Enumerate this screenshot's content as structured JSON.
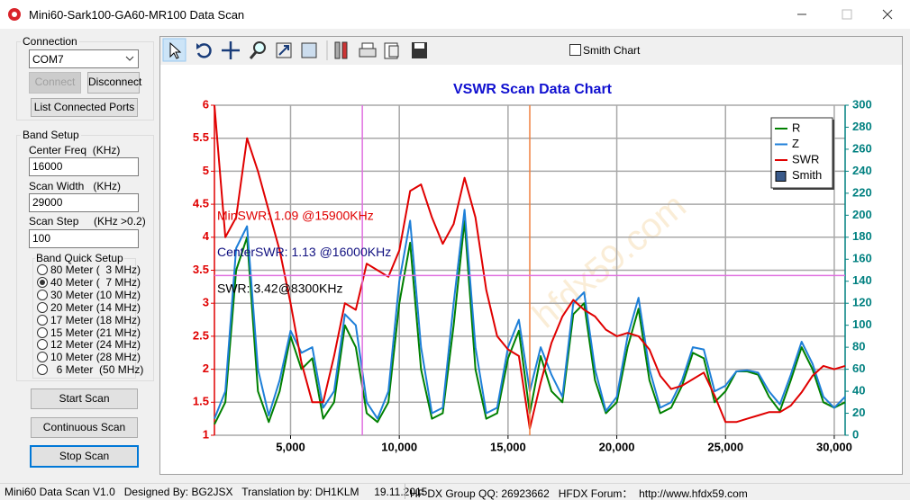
{
  "window_title": "Mini60-Sark100-GA60-MR100 Data Scan",
  "connection": {
    "title": "Connection",
    "port": "COM7",
    "connect": "Connect",
    "disconnect": "Disconnect",
    "list_ports": "List Connected Ports"
  },
  "band_setup": {
    "title": "Band Setup",
    "center_label": "Center Freq  (KHz)",
    "center_value": "16000",
    "width_label": "Scan Width   (KHz)",
    "width_value": "29000",
    "step_label": "Scan Step     (KHz >0.2)",
    "step_value": "100",
    "quick_title": "Band Quick Setup",
    "bands": [
      "80 Meter (  3 MHz)",
      "40 Meter (  7 MHz)",
      "30 Meter (10 MHz)",
      "20 Meter (14 MHz)",
      "17 Meter (18 MHz)",
      "15 Meter (21 MHz)",
      "12 Meter (24 MHz)",
      "10 Meter (28 MHz)",
      "  6 Meter  (50 MHz)"
    ],
    "selected_band": 1
  },
  "buttons": {
    "start": "Start Scan",
    "continuous": "Continuous Scan",
    "stop": "Stop Scan"
  },
  "toolbar": {
    "smith_chart": "Smith Chart"
  },
  "status_bar": {
    "left": "Mini60 Data Scan V1.0   Designed By: BG2JSX   Translation by: DH1KLM     19.11.2015",
    "right": "HF DX Group QQ: 26923662   HFDX Forum：  http://www.hfdx59.com"
  },
  "chart_data": {
    "type": "line",
    "title": "VSWR Scan Data Chart",
    "watermark": "hfdx59.com",
    "x": [
      1500,
      2000,
      2500,
      3000,
      3500,
      4000,
      4500,
      5000,
      5500,
      6000,
      6500,
      7000,
      7500,
      8000,
      8500,
      9000,
      9500,
      10000,
      10500,
      11000,
      11500,
      12000,
      12500,
      13000,
      13500,
      14000,
      14500,
      15000,
      15500,
      16000,
      16500,
      17000,
      17500,
      18000,
      18500,
      19000,
      19500,
      20000,
      20500,
      21000,
      21500,
      22000,
      22500,
      23000,
      23500,
      24000,
      24500,
      25000,
      25500,
      26000,
      26500,
      27000,
      27500,
      28000,
      28500,
      29000,
      29500,
      30000,
      30500
    ],
    "xlim": [
      1500,
      30500
    ],
    "xticks": [
      {
        "value": 5000,
        "label": "5,000"
      },
      {
        "value": 10000,
        "label": "10,000"
      },
      {
        "value": 15000,
        "label": "15,000"
      },
      {
        "value": 20000,
        "label": "20,000"
      },
      {
        "value": 25000,
        "label": "25,000"
      },
      {
        "value": 30000,
        "label": "30,000"
      }
    ],
    "ylim": [
      1,
      6
    ],
    "yticks": [
      1,
      1.5,
      2,
      2.5,
      3,
      3.5,
      4,
      4.5,
      5,
      5.5,
      6
    ],
    "y2lim": [
      0,
      300
    ],
    "y2ticks": [
      0,
      20,
      40,
      60,
      80,
      100,
      120,
      140,
      160,
      180,
      200,
      220,
      240,
      260,
      280,
      300
    ],
    "grid": true,
    "legend": "top-right",
    "smith_legend": "Smith",
    "series": [
      {
        "name": "R",
        "color": "#008000",
        "axis": "y2",
        "values": [
          10,
          30,
          150,
          180,
          40,
          12,
          40,
          90,
          60,
          70,
          15,
          30,
          100,
          80,
          20,
          12,
          30,
          120,
          175,
          60,
          15,
          20,
          100,
          195,
          60,
          15,
          20,
          70,
          95,
          20,
          72,
          40,
          30,
          110,
          120,
          50,
          20,
          30,
          80,
          115,
          50,
          20,
          25,
          45,
          75,
          70,
          30,
          40,
          58,
          58,
          55,
          35,
          22,
          50,
          80,
          60,
          30,
          25,
          30
        ]
      },
      {
        "name": "Z",
        "color": "#1e7fd8",
        "axis": "y2",
        "values": [
          15,
          40,
          170,
          190,
          60,
          18,
          50,
          95,
          75,
          80,
          25,
          40,
          110,
          100,
          30,
          15,
          40,
          140,
          195,
          80,
          20,
          25,
          120,
          205,
          80,
          20,
          25,
          80,
          105,
          40,
          80,
          55,
          35,
          120,
          130,
          60,
          22,
          35,
          90,
          125,
          60,
          25,
          30,
          50,
          80,
          78,
          40,
          45,
          58,
          59,
          57,
          40,
          28,
          55,
          85,
          65,
          35,
          25,
          35
        ]
      },
      {
        "name": "SWR",
        "color": "#e00000",
        "values": [
          6,
          4.0,
          4.3,
          5.5,
          5.0,
          4.4,
          3.8,
          3.0,
          2.1,
          1.5,
          1.5,
          2.2,
          3.0,
          2.9,
          3.6,
          3.5,
          3.4,
          3.8,
          4.7,
          4.8,
          4.3,
          3.9,
          4.2,
          4.9,
          4.3,
          3.2,
          2.5,
          2.3,
          2.2,
          1.1,
          1.8,
          2.4,
          2.8,
          3.05,
          2.9,
          2.8,
          2.6,
          2.5,
          2.55,
          2.5,
          2.3,
          1.9,
          1.7,
          1.75,
          1.85,
          1.95,
          1.6,
          1.2,
          1.2,
          1.25,
          1.3,
          1.35,
          1.35,
          1.45,
          1.65,
          1.9,
          2.05,
          2.0,
          2.05
        ]
      }
    ],
    "cursors": {
      "x": 8300,
      "center_x": 16000,
      "swr": 3.42
    },
    "annotations": [
      {
        "text": "MinSWR: 1.09 @15900KHz",
        "color": "#e00000"
      },
      {
        "text": "CenterSWR: 1.13 @16000KHz",
        "color": "#101080"
      },
      {
        "text": "SWR: 3.42@8300KHz",
        "color": "#000000"
      }
    ]
  }
}
